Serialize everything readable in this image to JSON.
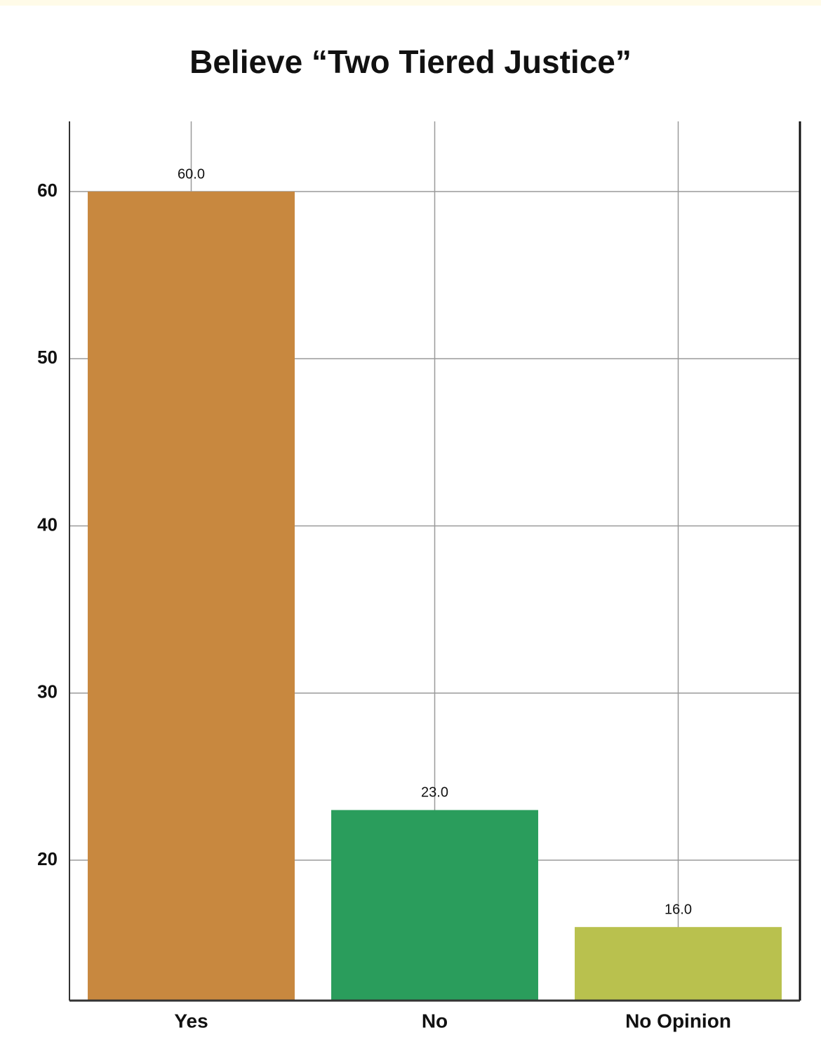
{
  "chart_data": {
    "type": "bar",
    "title": "Believe “Two Tiered Justice”",
    "categories": [
      "Yes",
      "No",
      "No Opinion"
    ],
    "values": [
      60,
      23,
      16
    ],
    "value_labels": [
      "60.0",
      "23.0",
      "16.0"
    ],
    "colors": [
      "#c8883f",
      "#2a9d5c",
      "#b9c14e"
    ],
    "ylim": [
      11.6,
      64.2
    ],
    "yticks": [
      20,
      30,
      40,
      50,
      60
    ],
    "grid": true
  }
}
